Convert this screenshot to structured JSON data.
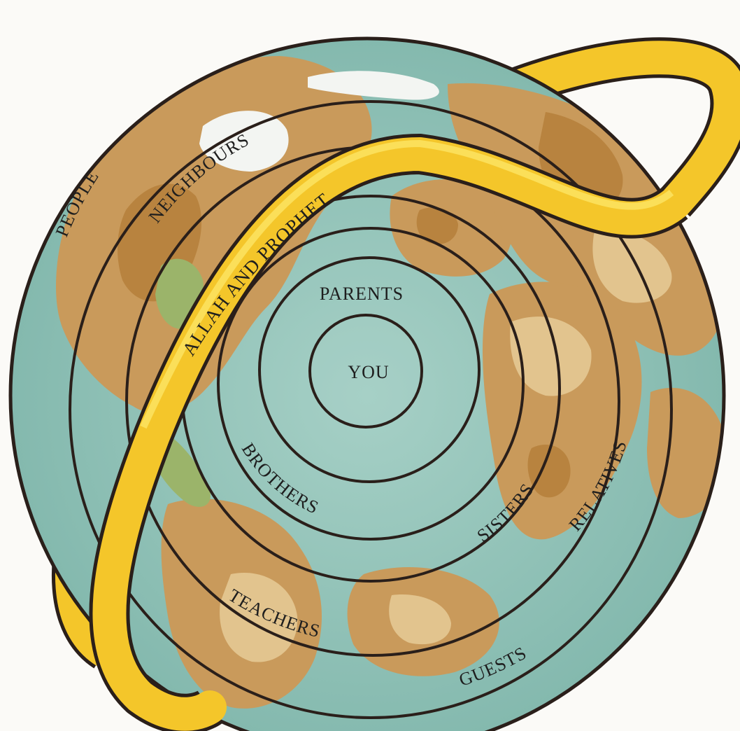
{
  "diagram": {
    "rings": [
      {
        "id": "you",
        "label": "YOU"
      },
      {
        "id": "parents",
        "label": "PARENTS"
      },
      {
        "id": "brothers",
        "label": "BROTHERS"
      },
      {
        "id": "sisters",
        "label": "SISTERS"
      },
      {
        "id": "relatives",
        "label": "RELATIVES"
      },
      {
        "id": "neighbours",
        "label": "NEIGHBOURS"
      },
      {
        "id": "teachers",
        "label": "TEACHERS"
      },
      {
        "id": "guests",
        "label": "GUESTS"
      },
      {
        "id": "people",
        "label": "PEOPLE"
      }
    ],
    "halo_label": "ALLAH AND PROPHET",
    "colors": {
      "ocean": "#8fc2b8",
      "land": "#c99a5b",
      "land_dark": "#b8833f",
      "land_light": "#e2c48e",
      "green": "#9bb46a",
      "ice": "#f3f5f2",
      "halo": "#f4c62a",
      "outline": "#2a1f1a"
    }
  }
}
